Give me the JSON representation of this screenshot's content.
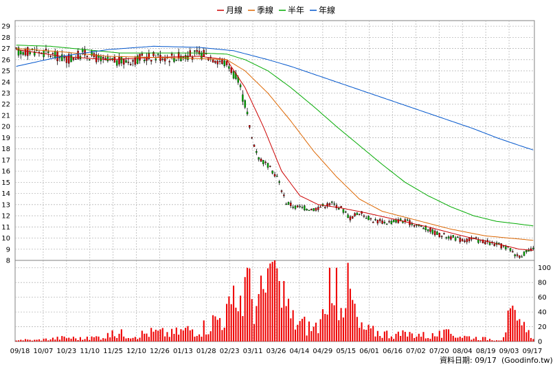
{
  "chart_data": {
    "type": "candlestick",
    "legend": [
      {
        "name": "月線",
        "color": "#cc0000"
      },
      {
        "name": "季線",
        "color": "#dd6600"
      },
      {
        "name": "半年",
        "color": "#00aa00"
      },
      {
        "name": "年線",
        "color": "#0055cc"
      }
    ],
    "price_axis": {
      "ticks": [
        "29",
        "28",
        "27",
        "26",
        "25",
        "24",
        "23",
        "22",
        "21",
        "20",
        "19",
        "18",
        "17",
        "16",
        "15",
        "14",
        "13",
        "12",
        "11",
        "10",
        "9",
        "8"
      ],
      "range": [
        8,
        29.5
      ]
    },
    "volume_axis": {
      "ticks": [
        "100",
        "80",
        "60",
        "40",
        "20",
        "0"
      ],
      "range": [
        0,
        110
      ]
    },
    "x_tick_labels": [
      "09/18",
      "10/07",
      "10/23",
      "11/10",
      "11/25",
      "12/10",
      "12/26",
      "01/13",
      "01/28",
      "02/23",
      "03/11",
      "03/26",
      "04/14",
      "04/29",
      "05/15",
      "06/01",
      "06/16",
      "07/02",
      "07/20",
      "08/04",
      "08/19",
      "09/03",
      "09/17"
    ],
    "price_anchors": [
      [
        0,
        26.7
      ],
      [
        8,
        26.8
      ],
      [
        15,
        26.5
      ],
      [
        22,
        26.0
      ],
      [
        30,
        26.6
      ],
      [
        38,
        25.9
      ],
      [
        45,
        25.8
      ],
      [
        52,
        26.0
      ],
      [
        60,
        26.3
      ],
      [
        68,
        26.2
      ],
      [
        75,
        26.4
      ],
      [
        82,
        26.5
      ],
      [
        88,
        26.0
      ],
      [
        93,
        25.5
      ],
      [
        97,
        24.0
      ],
      [
        100,
        22.0
      ],
      [
        103,
        19.0
      ],
      [
        106,
        17.2
      ],
      [
        110,
        16.5
      ],
      [
        114,
        15.5
      ],
      [
        118,
        13.2
      ],
      [
        122,
        12.8
      ],
      [
        126,
        12.7
      ],
      [
        130,
        12.6
      ],
      [
        134,
        12.9
      ],
      [
        138,
        13.1
      ],
      [
        142,
        12.7
      ],
      [
        146,
        11.8
      ],
      [
        150,
        12.3
      ],
      [
        156,
        11.6
      ],
      [
        162,
        11.4
      ],
      [
        168,
        11.6
      ],
      [
        175,
        11.2
      ],
      [
        180,
        10.8
      ],
      [
        185,
        10.3
      ],
      [
        190,
        10.1
      ],
      [
        195,
        9.8
      ],
      [
        200,
        9.9
      ],
      [
        206,
        9.6
      ],
      [
        212,
        9.3
      ],
      [
        216,
        9.0
      ],
      [
        219,
        8.4
      ],
      [
        222,
        8.6
      ],
      [
        225,
        8.9
      ]
    ],
    "volume_anchors": [
      [
        0,
        3
      ],
      [
        8,
        2
      ],
      [
        15,
        4
      ],
      [
        22,
        6
      ],
      [
        30,
        4
      ],
      [
        38,
        8
      ],
      [
        45,
        12
      ],
      [
        52,
        10
      ],
      [
        60,
        14
      ],
      [
        68,
        12
      ],
      [
        75,
        18
      ],
      [
        82,
        22
      ],
      [
        88,
        35
      ],
      [
        93,
        45
      ],
      [
        97,
        60
      ],
      [
        100,
        80
      ],
      [
        103,
        70
      ],
      [
        106,
        55
      ],
      [
        110,
        90
      ],
      [
        114,
        85
      ],
      [
        118,
        40
      ],
      [
        122,
        30
      ],
      [
        126,
        25
      ],
      [
        130,
        20
      ],
      [
        134,
        30
      ],
      [
        138,
        35
      ],
      [
        142,
        90
      ],
      [
        146,
        70
      ],
      [
        150,
        20
      ],
      [
        156,
        15
      ],
      [
        162,
        12
      ],
      [
        168,
        10
      ],
      [
        175,
        12
      ],
      [
        180,
        8
      ],
      [
        185,
        10
      ],
      [
        190,
        12
      ],
      [
        195,
        8
      ],
      [
        200,
        6
      ],
      [
        206,
        4
      ],
      [
        212,
        3
      ],
      [
        216,
        40
      ],
      [
        219,
        25
      ],
      [
        222,
        18
      ],
      [
        225,
        10
      ]
    ],
    "volume_spikes": [
      [
        101,
        100
      ],
      [
        112,
        108
      ],
      [
        115,
        82
      ],
      [
        117,
        82
      ],
      [
        119,
        58
      ],
      [
        137,
        100
      ],
      [
        140,
        100
      ],
      [
        216,
        45
      ]
    ],
    "ma_month": [
      [
        0,
        26.9
      ],
      [
        20,
        26.3
      ],
      [
        40,
        26.0
      ],
      [
        60,
        26.2
      ],
      [
        80,
        26.3
      ],
      [
        92,
        26.0
      ],
      [
        100,
        23.5
      ],
      [
        108,
        20.0
      ],
      [
        116,
        16.0
      ],
      [
        124,
        13.8
      ],
      [
        132,
        13.0
      ],
      [
        142,
        12.7
      ],
      [
        152,
        12.3
      ],
      [
        165,
        11.7
      ],
      [
        180,
        11.0
      ],
      [
        195,
        10.2
      ],
      [
        210,
        9.5
      ],
      [
        220,
        9.0
      ],
      [
        226,
        8.9
      ]
    ],
    "ma_quarter": [
      [
        0,
        27.0
      ],
      [
        20,
        26.7
      ],
      [
        40,
        26.3
      ],
      [
        60,
        26.2
      ],
      [
        80,
        26.1
      ],
      [
        92,
        26.0
      ],
      [
        100,
        25.0
      ],
      [
        110,
        23.0
      ],
      [
        120,
        20.5
      ],
      [
        130,
        17.8
      ],
      [
        140,
        15.5
      ],
      [
        150,
        13.5
      ],
      [
        160,
        12.4
      ],
      [
        175,
        11.6
      ],
      [
        190,
        10.8
      ],
      [
        205,
        10.2
      ],
      [
        226,
        9.8
      ]
    ],
    "ma_half": [
      [
        0,
        27.3
      ],
      [
        15,
        27.2
      ],
      [
        30,
        26.9
      ],
      [
        45,
        26.6
      ],
      [
        60,
        26.6
      ],
      [
        80,
        26.6
      ],
      [
        92,
        26.5
      ],
      [
        100,
        26.0
      ],
      [
        110,
        25.0
      ],
      [
        120,
        23.5
      ],
      [
        130,
        21.8
      ],
      [
        140,
        20.0
      ],
      [
        150,
        18.3
      ],
      [
        160,
        16.6
      ],
      [
        170,
        15.0
      ],
      [
        180,
        13.8
      ],
      [
        190,
        12.8
      ],
      [
        200,
        12.0
      ],
      [
        210,
        11.5
      ],
      [
        226,
        11.1
      ]
    ],
    "ma_year": [
      [
        0,
        25.4
      ],
      [
        20,
        26.3
      ],
      [
        40,
        26.9
      ],
      [
        60,
        27.2
      ],
      [
        80,
        27.1
      ],
      [
        95,
        26.8
      ],
      [
        110,
        26.0
      ],
      [
        120,
        25.4
      ],
      [
        130,
        24.7
      ],
      [
        140,
        24.0
      ],
      [
        150,
        23.3
      ],
      [
        160,
        22.6
      ],
      [
        170,
        21.9
      ],
      [
        180,
        21.2
      ],
      [
        190,
        20.5
      ],
      [
        200,
        19.8
      ],
      [
        210,
        19.0
      ],
      [
        220,
        18.3
      ],
      [
        226,
        17.9
      ]
    ]
  },
  "footer": {
    "date_label": "資料日期: 09/17",
    "source": "(Goodinfo.tw)"
  },
  "colors": {
    "up": "#dd0000",
    "down": "#00bb00",
    "volume": "#ee0000",
    "grid": "#b8b8b8"
  }
}
